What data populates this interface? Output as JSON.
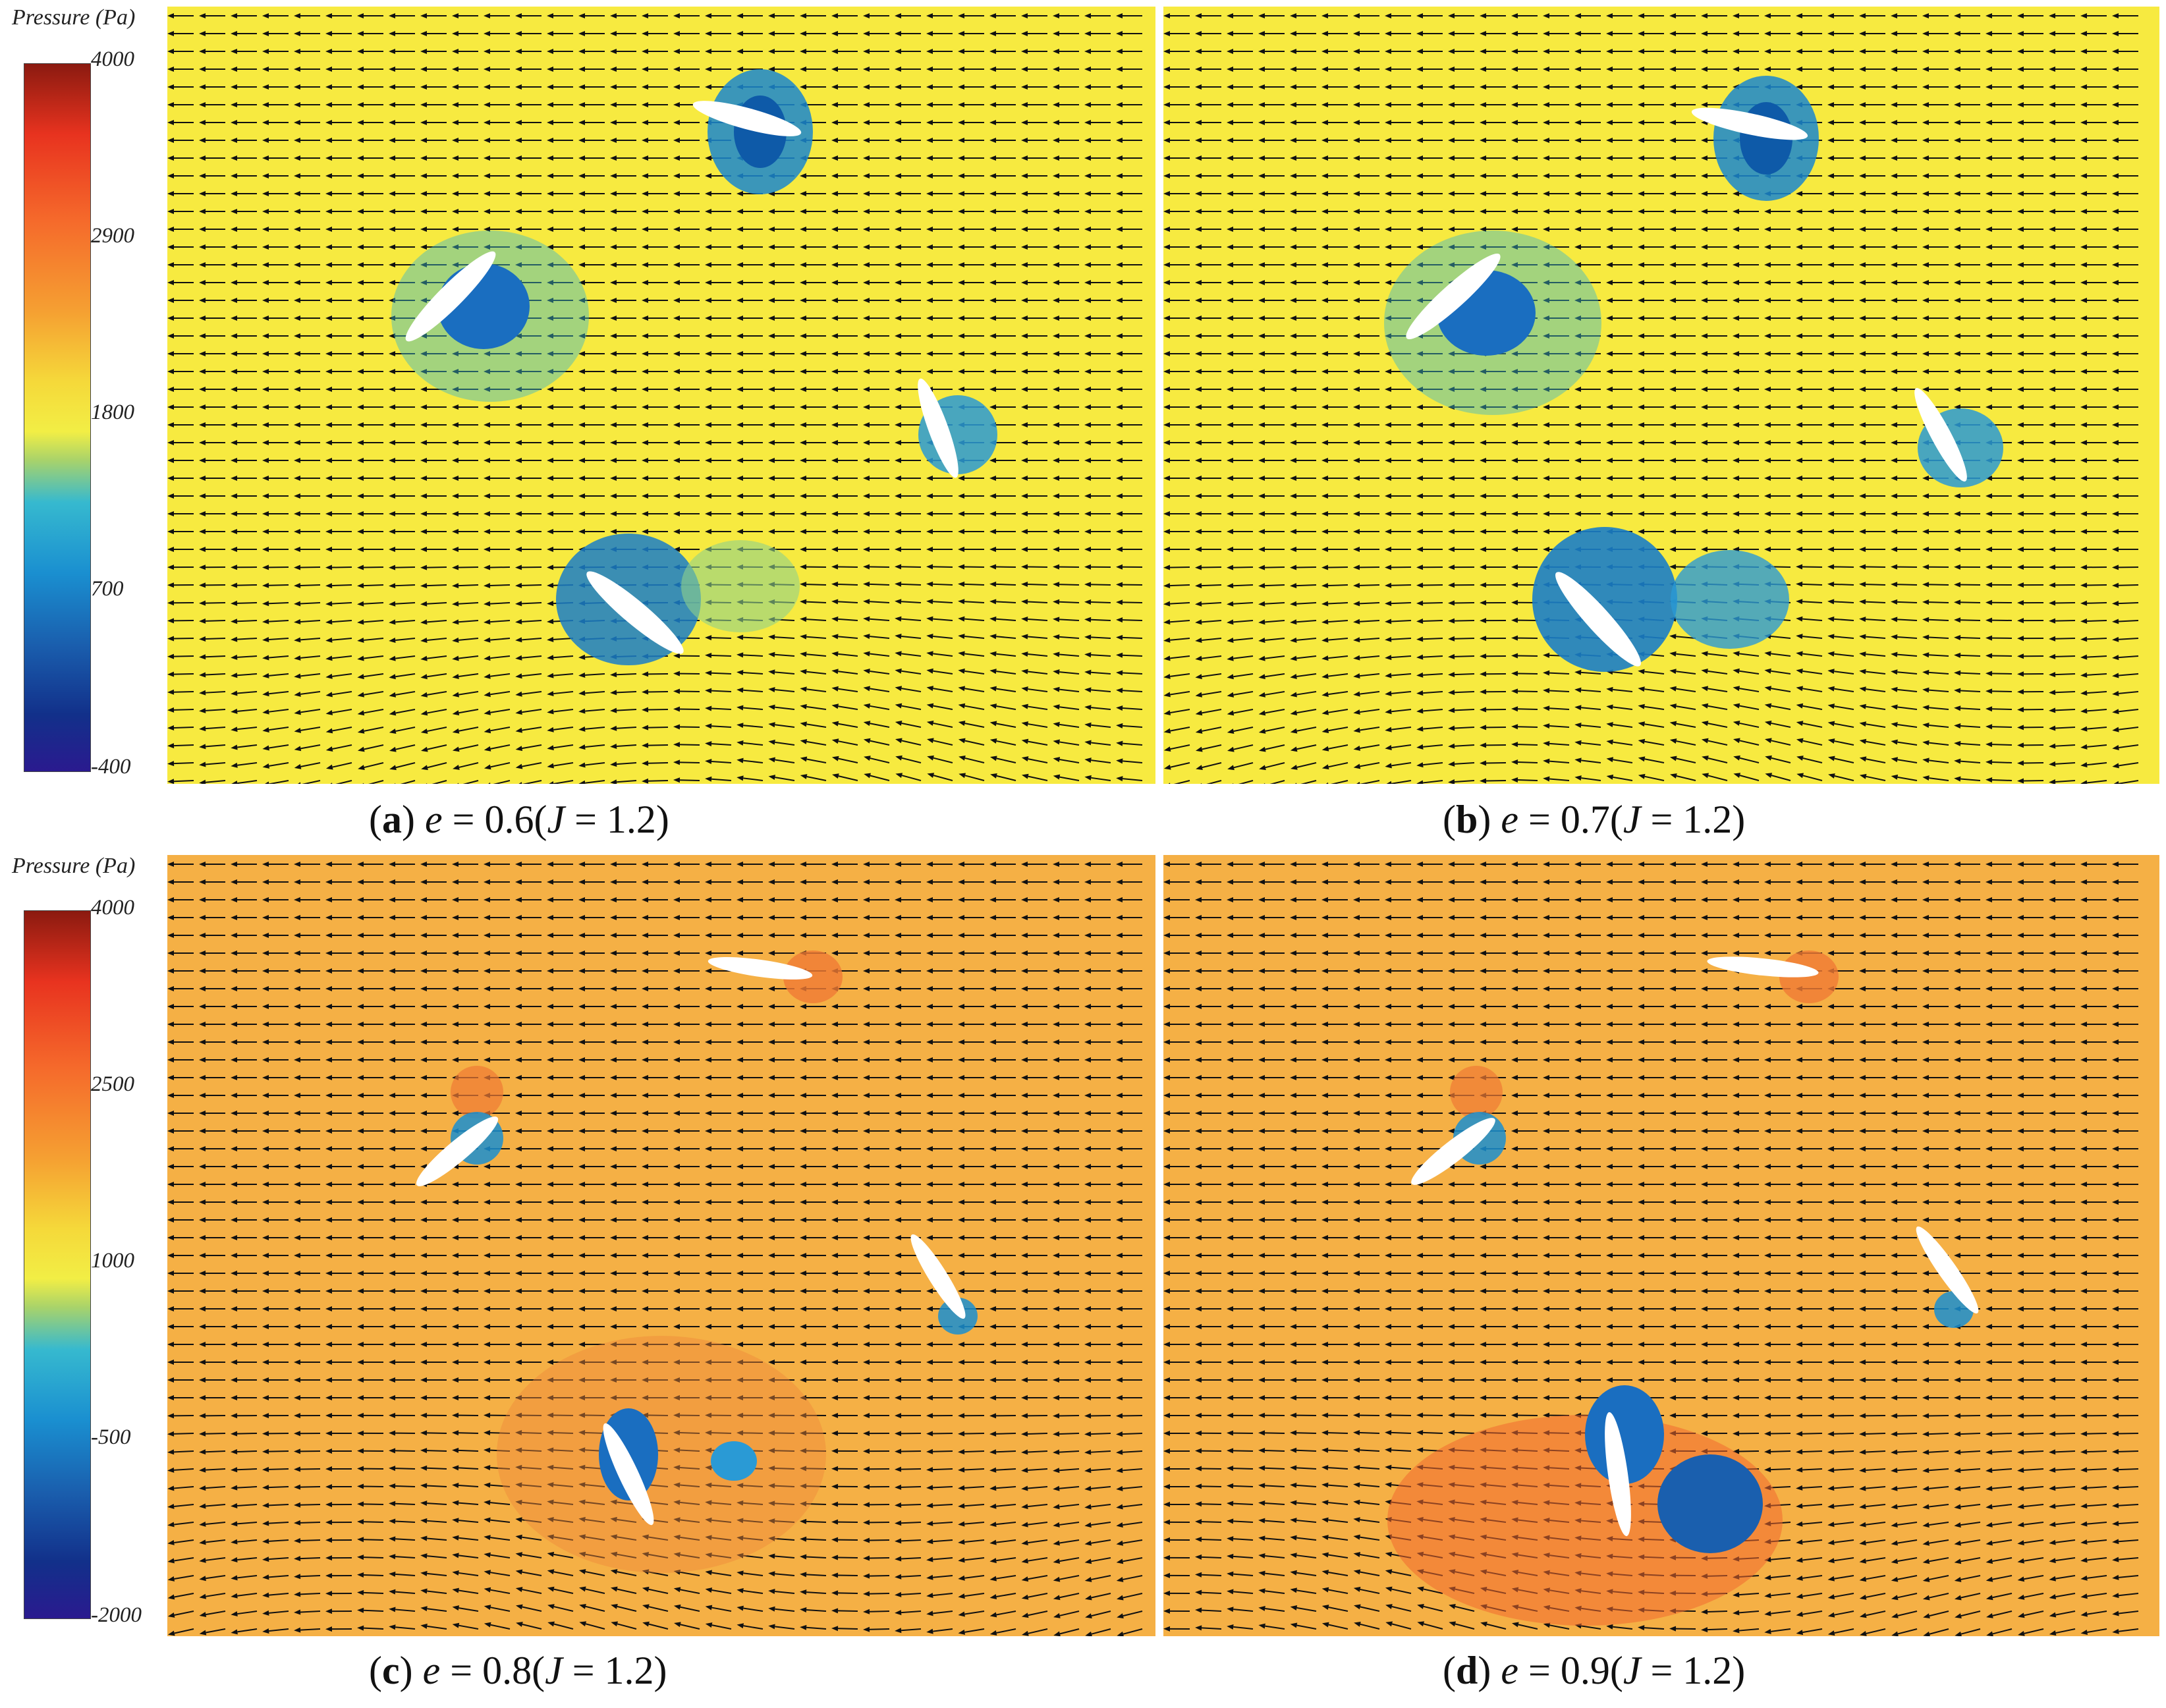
{
  "colorbars": [
    {
      "title": "Pressure (Pa)",
      "ticks": [
        "4000",
        "2900",
        "1800",
        "700",
        "-400"
      ]
    },
    {
      "title": "Pressure (Pa)",
      "ticks": [
        "4000",
        "2500",
        "1000",
        "-500",
        "-2000"
      ]
    }
  ],
  "panels": [
    {
      "letter": "a",
      "e_text": "e",
      "rest": " = 0.6(",
      "j_text": "J",
      "tail": " = 1.2)",
      "field_color": "#f7ea40"
    },
    {
      "letter": "b",
      "e_text": "e",
      "rest": " = 0.7(",
      "j_text": "J",
      "tail": " = 1.2)",
      "field_color": "#f7ea40"
    },
    {
      "letter": "c",
      "e_text": "e",
      "rest": " = 0.8(",
      "j_text": "J",
      "tail": " = 1.2)",
      "field_color": "#f5b045"
    },
    {
      "letter": "d",
      "e_text": "e",
      "rest": " = 0.9(",
      "j_text": "J",
      "tail": " = 1.2)",
      "field_color": "#f5b045"
    }
  ]
}
